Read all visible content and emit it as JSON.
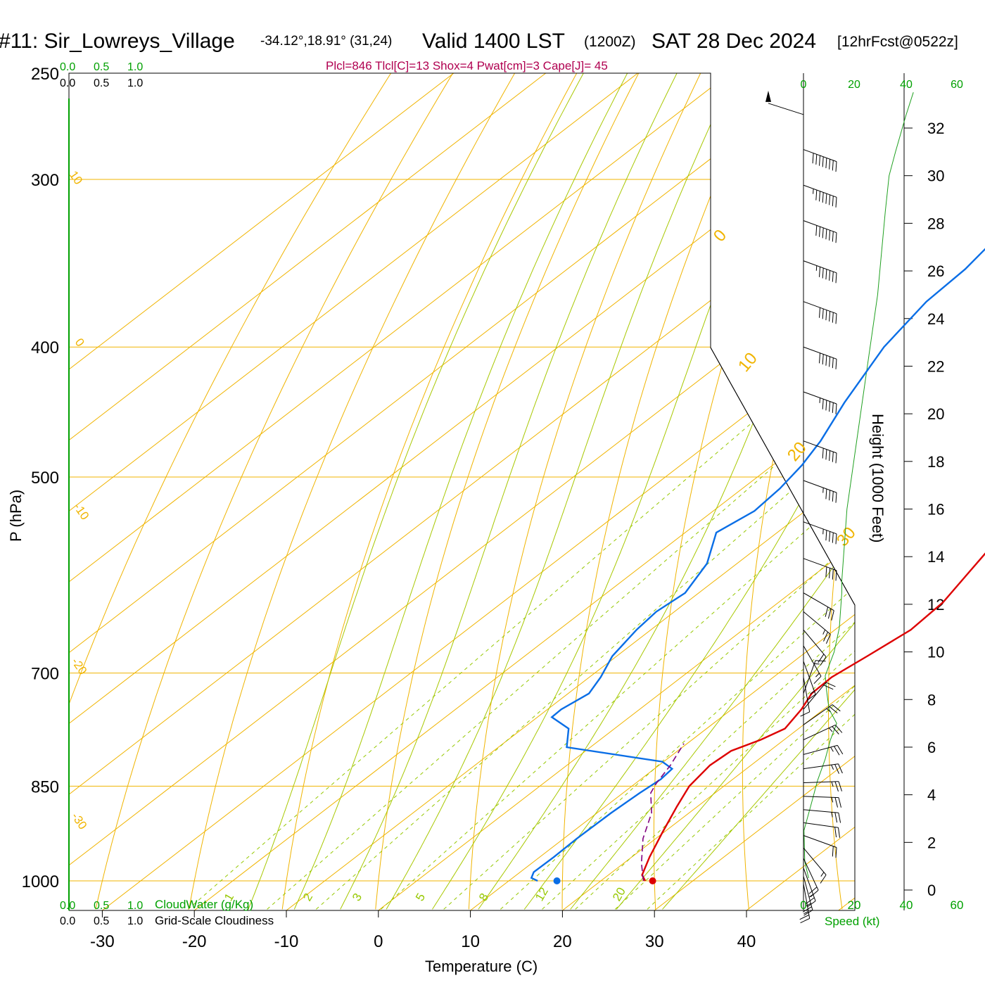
{
  "header": {
    "station": "#11: Sir_Lowreys_Village",
    "coords": "-34.12°,18.91° (31,24)",
    "valid": "Valid 1400 LST",
    "zulu": "(1200Z)",
    "date": "SAT 28 Dec 2024",
    "forecast": "[12hrFcst@0522z]",
    "indices": "Plcl=846 Tlcl[C]=13 Shox=4 Pwat[cm]=3 Cape[J]= 45"
  },
  "colors": {
    "temperature": "#dd0000",
    "dewpoint": "#0a6ee6",
    "parcel": "#800080",
    "isotherm": "#f0b400",
    "dry_adiabat": "#f0b400",
    "moist_adiabat": "#a8c800",
    "mixing_ratio": "#96c800",
    "green_text": "#00a000",
    "index_text": "#b00050"
  },
  "chart_data": [
    {
      "type": "line",
      "subtype": "skew-t",
      "xlabel": "Temperature (C)",
      "ylabel": "P (hPa)",
      "x_ticks": [
        -30,
        -20,
        -10,
        0,
        10,
        20,
        30,
        40
      ],
      "pressure_ticks": [
        250,
        300,
        400,
        500,
        700,
        850,
        1000
      ],
      "pressure_range": [
        250,
        1000
      ],
      "grid": true,
      "isotherm_labels": [
        {
          "text": "10"
        },
        {
          "text": "0"
        },
        {
          "text": "-10"
        },
        {
          "text": "-20"
        },
        {
          "text": "-30"
        },
        {
          "text": "0"
        },
        {
          "text": "10"
        },
        {
          "text": "20"
        },
        {
          "text": "30"
        }
      ],
      "mixing_ratio_labels": [
        "1",
        "2",
        "3",
        "5",
        "8",
        "12",
        "20"
      ],
      "series": [
        {
          "key": "temperature",
          "points": [
            {
              "t": 29.0,
              "p": 1000
            },
            {
              "t": 27.8,
              "p": 990
            },
            {
              "t": 26.0,
              "p": 960
            },
            {
              "t": 23.8,
              "p": 920
            },
            {
              "t": 21.6,
              "p": 880
            },
            {
              "t": 20.0,
              "p": 850
            },
            {
              "t": 19.2,
              "p": 820
            },
            {
              "t": 19.4,
              "p": 800
            },
            {
              "t": 21.0,
              "p": 785
            },
            {
              "t": 22.0,
              "p": 770
            },
            {
              "t": 21.0,
              "p": 745
            },
            {
              "t": 19.8,
              "p": 725
            },
            {
              "t": 19.6,
              "p": 705
            },
            {
              "t": 20.4,
              "p": 680
            },
            {
              "t": 21.3,
              "p": 650
            },
            {
              "t": 20.8,
              "p": 620
            },
            {
              "t": 19.3,
              "p": 590
            },
            {
              "t": 18.0,
              "p": 565
            },
            {
              "t": 16.7,
              "p": 540
            },
            {
              "t": 14.2,
              "p": 510
            },
            {
              "t": 11.6,
              "p": 480
            },
            {
              "t": 8.6,
              "p": 450
            },
            {
              "t": 5.0,
              "p": 415
            },
            {
              "t": 1.7,
              "p": 385
            },
            {
              "t": -1.6,
              "p": 360
            },
            {
              "t": -5.0,
              "p": 335
            },
            {
              "t": -8.8,
              "p": 310
            },
            {
              "t": -12.8,
              "p": 290
            },
            {
              "t": -16.5,
              "p": 270
            }
          ]
        },
        {
          "key": "dewpoint",
          "points": [
            {
              "t": 17.3,
              "p": 1000
            },
            {
              "t": 16.2,
              "p": 995
            },
            {
              "t": 15.6,
              "p": 985
            },
            {
              "t": 15.6,
              "p": 960
            },
            {
              "t": 15.4,
              "p": 930
            },
            {
              "t": 15.4,
              "p": 890
            },
            {
              "t": 15.6,
              "p": 860
            },
            {
              "t": 15.9,
              "p": 840
            },
            {
              "t": 15.6,
              "p": 825
            },
            {
              "t": 13.5,
              "p": 815
            },
            {
              "t": 1.0,
              "p": 795
            },
            {
              "t": -1.5,
              "p": 770
            },
            {
              "t": -5.0,
              "p": 755
            },
            {
              "t": -5.1,
              "p": 745
            },
            {
              "t": -4.4,
              "p": 725
            },
            {
              "t": -5.5,
              "p": 705
            },
            {
              "t": -7.3,
              "p": 680
            },
            {
              "t": -8.5,
              "p": 650
            },
            {
              "t": -9.0,
              "p": 630
            },
            {
              "t": -8.6,
              "p": 610
            },
            {
              "t": -10.5,
              "p": 580
            },
            {
              "t": -14.0,
              "p": 550
            },
            {
              "t": -13.0,
              "p": 530
            },
            {
              "t": -13.5,
              "p": 510
            },
            {
              "t": -14.5,
              "p": 490
            },
            {
              "t": -16.0,
              "p": 470
            },
            {
              "t": -19.0,
              "p": 440
            },
            {
              "t": -22.8,
              "p": 400
            },
            {
              "t": -24.8,
              "p": 370
            },
            {
              "t": -25.3,
              "p": 350
            },
            {
              "t": -26.6,
              "p": 330
            },
            {
              "t": -28.2,
              "p": 300
            },
            {
              "t": -30.0,
              "p": 280
            },
            {
              "t": -31.5,
              "p": 265
            }
          ]
        },
        {
          "key": "parcel",
          "points": [
            {
              "t": 28.8,
              "p": 1000
            },
            {
              "t": 26.0,
              "p": 970
            },
            {
              "t": 22.6,
              "p": 930
            },
            {
              "t": 19.8,
              "p": 890
            },
            {
              "t": 16.8,
              "p": 860
            },
            {
              "t": 16.0,
              "p": 846
            },
            {
              "t": 14.9,
              "p": 820
            },
            {
              "t": 13.2,
              "p": 790
            }
          ]
        }
      ],
      "surface_markers": [
        {
          "key": "temperature",
          "t": 29.8,
          "p": 1000
        },
        {
          "key": "dewpoint",
          "t": 19.4,
          "p": 1000
        }
      ],
      "wind_axis": {
        "ticks": [
          "0",
          "20",
          "40",
          "60"
        ],
        "label": "Speed (kt)"
      },
      "cloud_scale_ticks": [
        "0.0",
        "0.5",
        "1.0"
      ],
      "cloudwater_label": "CloudWater (g/Kg)",
      "cloudiness_label": "Grid-Scale Cloudiness"
    },
    {
      "type": "line",
      "name": "wind speed profile",
      "ylabel": "Height (1000 Feet)",
      "xlabel": "Speed (kt)",
      "height_ticks": [
        "0",
        "2",
        "4",
        "6",
        "8",
        "10",
        "12",
        "14",
        "16",
        "18",
        "20",
        "22",
        "24",
        "26",
        "28",
        "30",
        "32"
      ],
      "height_range": [
        0,
        33
      ],
      "speed_range": [
        0,
        60
      ],
      "points": [
        {
          "h": 0.5,
          "s": 2
        },
        {
          "h": 1.2,
          "s": 0.5
        },
        {
          "h": 2.5,
          "s": 0.2
        },
        {
          "h": 3.6,
          "s": 3
        },
        {
          "h": 4.6,
          "s": 5.5
        },
        {
          "h": 5.5,
          "s": 8.5
        },
        {
          "h": 6.3,
          "s": 10.5
        },
        {
          "h": 7.0,
          "s": 13
        },
        {
          "h": 7.6,
          "s": 10
        },
        {
          "h": 8.4,
          "s": 9
        },
        {
          "h": 9.0,
          "s": 8.5
        },
        {
          "h": 10.0,
          "s": 12
        },
        {
          "h": 11.0,
          "s": 14
        },
        {
          "h": 12.5,
          "s": 15
        },
        {
          "h": 13.0,
          "s": 15
        },
        {
          "h": 16.0,
          "s": 17
        },
        {
          "h": 19.0,
          "s": 21
        },
        {
          "h": 22.0,
          "s": 25
        },
        {
          "h": 25.0,
          "s": 29
        },
        {
          "h": 28.5,
          "s": 32
        },
        {
          "h": 30.0,
          "s": 33.5
        },
        {
          "h": 31.0,
          "s": 36
        },
        {
          "h": 32.5,
          "s": 40
        },
        {
          "h": 33.5,
          "s": 43
        }
      ]
    }
  ],
  "wind_barbs": [
    {
      "p": 262,
      "spd": 0,
      "dir": 0
    },
    {
      "p": 285,
      "spd": 80,
      "dir": 290
    },
    {
      "p": 303,
      "spd": 75,
      "dir": 290
    },
    {
      "p": 322,
      "spd": 70,
      "dir": 290
    },
    {
      "p": 345,
      "spd": 65,
      "dir": 290
    },
    {
      "p": 370,
      "spd": 60,
      "dir": 290
    },
    {
      "p": 400,
      "spd": 60,
      "dir": 290
    },
    {
      "p": 432,
      "spd": 55,
      "dir": 290
    },
    {
      "p": 470,
      "spd": 50,
      "dir": 290
    },
    {
      "p": 503,
      "spd": 45,
      "dir": 290
    },
    {
      "p": 540,
      "spd": 45,
      "dir": 290
    },
    {
      "p": 575,
      "spd": 40,
      "dir": 290
    },
    {
      "p": 610,
      "spd": 30,
      "dir": 300
    },
    {
      "p": 630,
      "spd": 25,
      "dir": 310
    },
    {
      "p": 650,
      "spd": 20,
      "dir": 320
    },
    {
      "p": 668,
      "spd": 15,
      "dir": 330
    },
    {
      "p": 686,
      "spd": 15,
      "dir": 340
    },
    {
      "p": 705,
      "spd": 10,
      "dir": 350
    },
    {
      "p": 725,
      "spd": 15,
      "dir": 200
    },
    {
      "p": 745,
      "spd": 20,
      "dir": 220
    },
    {
      "p": 765,
      "spd": 25,
      "dir": 235
    },
    {
      "p": 785,
      "spd": 25,
      "dir": 245
    },
    {
      "p": 805,
      "spd": 25,
      "dir": 255
    },
    {
      "p": 825,
      "spd": 25,
      "dir": 262
    },
    {
      "p": 845,
      "spd": 25,
      "dir": 268
    },
    {
      "p": 865,
      "spd": 25,
      "dir": 272
    },
    {
      "p": 885,
      "spd": 25,
      "dir": 275
    },
    {
      "p": 905,
      "spd": 20,
      "dir": 278
    },
    {
      "p": 925,
      "spd": 20,
      "dir": 290
    },
    {
      "p": 945,
      "spd": 15,
      "dir": 320
    },
    {
      "p": 962,
      "spd": 20,
      "dir": 335
    },
    {
      "p": 978,
      "spd": 25,
      "dir": 340
    },
    {
      "p": 992,
      "spd": 25,
      "dir": 345
    },
    {
      "p": 1005,
      "spd": 25,
      "dir": 350
    }
  ]
}
